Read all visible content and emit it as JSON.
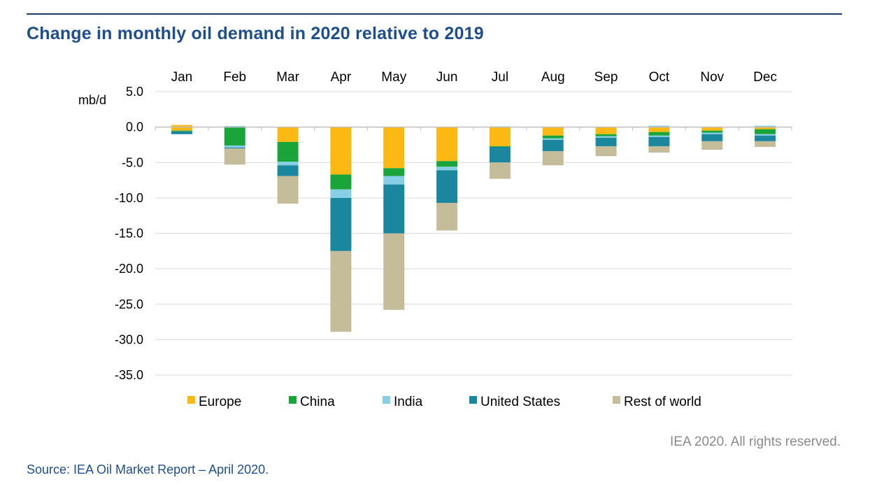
{
  "title": "Change in monthly oil demand in 2020 relative to 2019",
  "copyright": "IEA 2020. All rights reserved.",
  "source": "Source: IEA Oil Market Report – April 2020.",
  "colors": {
    "Europe": "#fdb913",
    "China": "#1aa53a",
    "India": "#86cfe6",
    "United States": "#1a879f",
    "Rest of world": "#c5bd9a",
    "title": "#1f4e8c",
    "gridline": "#d9d9d9"
  },
  "chart_data": {
    "type": "bar",
    "stacked": true,
    "ylabel": "mb/d",
    "ylim": [
      -35,
      5
    ],
    "yticks": [
      "5.0",
      "0.0",
      "-5.0",
      "-10.0",
      "-15.0",
      "-20.0",
      "-25.0",
      "-30.0",
      "-35.0"
    ],
    "ytick_values": [
      5,
      0,
      -5,
      -10,
      -15,
      -20,
      -25,
      -30,
      -35
    ],
    "categories": [
      "Jan",
      "Feb",
      "Mar",
      "Apr",
      "May",
      "Jun",
      "Jul",
      "Aug",
      "Sep",
      "Oct",
      "Nov",
      "Dec"
    ],
    "grid": true,
    "legend_position": "bottom",
    "series": [
      {
        "name": "Europe",
        "values": [
          -0.5,
          0.0,
          -2.1,
          -6.7,
          -5.8,
          -4.8,
          -2.7,
          -1.2,
          -1.0,
          -0.7,
          -0.5,
          -0.3
        ]
      },
      {
        "name": "China",
        "values": [
          -0.1,
          -2.6,
          -2.8,
          -2.1,
          -1.1,
          -0.8,
          -0.1,
          -0.4,
          -0.3,
          -0.5,
          -0.3,
          -0.7
        ]
      },
      {
        "name": "India",
        "values": [
          0.0,
          -0.3,
          -0.5,
          -1.2,
          -1.2,
          -0.5,
          0.0,
          -0.2,
          -0.2,
          -0.2,
          -0.2,
          -0.2
        ]
      },
      {
        "name": "United States",
        "values": [
          -0.4,
          -0.1,
          -1.5,
          -7.5,
          -6.9,
          -4.6,
          -2.2,
          -1.6,
          -1.2,
          -1.3,
          -1.0,
          -0.8
        ]
      },
      {
        "name": "Rest of world",
        "values": [
          0.0,
          -2.3,
          -3.9,
          -11.4,
          -10.8,
          -3.9,
          -2.3,
          -2.0,
          -1.4,
          -0.9,
          -1.2,
          -0.8
        ]
      }
    ],
    "positive_stub": [
      0.3,
      0.15,
      0,
      0,
      0,
      0,
      0.1,
      0,
      0,
      0.2,
      0,
      0.2
    ]
  }
}
